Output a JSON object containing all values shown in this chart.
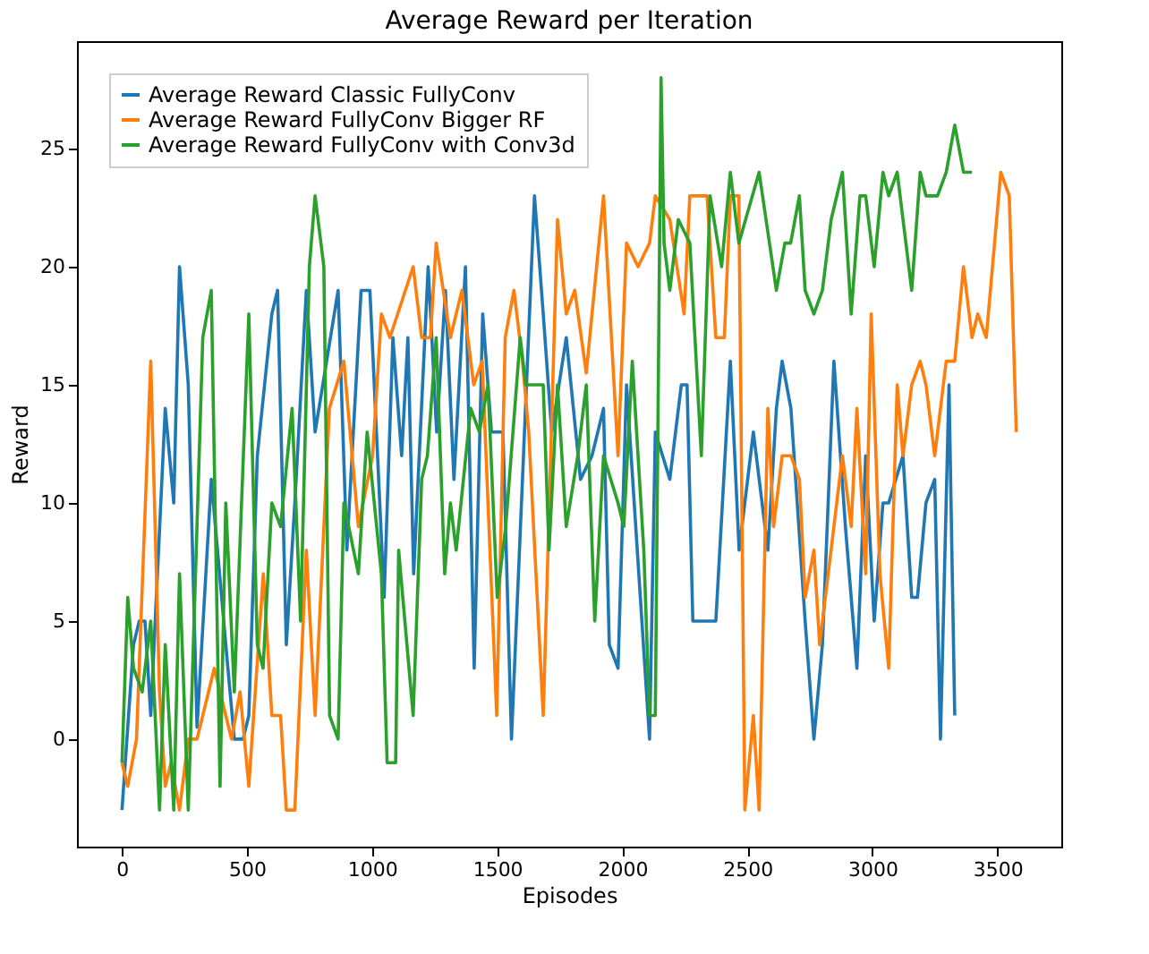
{
  "chart_data": {
    "type": "line",
    "title": "Average Reward per Iteration",
    "xlabel": "Episodes",
    "ylabel": "Reward",
    "xlim": [
      -180,
      3755
    ],
    "ylim": [
      -4.55,
      29.55
    ],
    "xticks": [
      0,
      500,
      1000,
      1500,
      2000,
      2500,
      3000,
      3500
    ],
    "yticks": [
      0,
      5,
      10,
      15,
      20,
      25
    ],
    "grid": false,
    "legend": "top left",
    "marker": "none",
    "line_style": "solid",
    "series": [
      {
        "name": "Average Reward Classic FullyConv",
        "color": "#1f77b4",
        "x": [
          0,
          46,
          69,
          92,
          115,
          173,
          207,
          230,
          265,
          300,
          357,
          415,
          449,
          484,
          507,
          541,
          599,
          622,
          657,
          691,
          737,
          772,
          864,
          899,
          956,
          991,
          1048,
          1083,
          1118,
          1143,
          1166,
          1224,
          1258,
          1293,
          1327,
          1373,
          1408,
          1442,
          1477,
          1523,
          1557,
          1649,
          1684,
          1718,
          1776,
          1833,
          1879,
          1925,
          1948,
          1983,
          2017,
          2109,
          2132,
          2190,
          2236,
          2259,
          2282,
          2316,
          2374,
          2432,
          2467,
          2524,
          2582,
          2616,
          2639,
          2674,
          2731,
          2766,
          2800,
          2846,
          2892,
          2938,
          2973,
          3007,
          3042,
          3065,
          3122,
          3157,
          3180,
          3214,
          3249,
          3272,
          3306,
          3329
        ],
        "values": [
          -3,
          4,
          5,
          5,
          1,
          14,
          10,
          20,
          15,
          0.5,
          11,
          4,
          0,
          0,
          1,
          12,
          18,
          19,
          4,
          10,
          19,
          13,
          19,
          8,
          19,
          19,
          6,
          17,
          12,
          17,
          7,
          20,
          13,
          19,
          11,
          20,
          3,
          18,
          13,
          13,
          0,
          23,
          18,
          13,
          17,
          11,
          12,
          14,
          4,
          3,
          15,
          0,
          13,
          11,
          15,
          15,
          5,
          5,
          5,
          16,
          8,
          13,
          8,
          14,
          16,
          14,
          5,
          0,
          4,
          16,
          9,
          3,
          12,
          5,
          10,
          10,
          12,
          6,
          6,
          10,
          11,
          0,
          15,
          1
        ]
      },
      {
        "name": "Average Reward FullyConv Bigger RF",
        "color": "#ff7f0e",
        "x": [
          0,
          23,
          58,
          115,
          150,
          173,
          196,
          230,
          265,
          300,
          369,
          438,
          472,
          507,
          565,
          599,
          634,
          657,
          691,
          737,
          772,
          829,
          887,
          945,
          1002,
          1037,
          1071,
          1164,
          1198,
          1233,
          1256,
          1313,
          1359,
          1406,
          1440,
          1498,
          1532,
          1567,
          1601,
          1626,
          1684,
          1741,
          1776,
          1810,
          1856,
          1925,
          1983,
          2017,
          2063,
          2109,
          2132,
          2190,
          2247,
          2270,
          2339,
          2374,
          2408,
          2432,
          2466,
          2490,
          2524,
          2547,
          2582,
          2605,
          2639,
          2674,
          2708,
          2731,
          2766,
          2789,
          2846,
          2880,
          2915,
          2938,
          2973,
          2995,
          3030,
          3065,
          3099,
          3122,
          3157,
          3191,
          3214,
          3249,
          3295,
          3329,
          3364,
          3398,
          3421,
          3455,
          3513,
          3547,
          3575
        ],
        "values": [
          -1,
          -2,
          0,
          16,
          2,
          -2,
          -1,
          -3,
          0,
          0,
          3,
          0,
          2,
          -2,
          7,
          1,
          1,
          -3,
          -3,
          8,
          1,
          14,
          16,
          9,
          12,
          18,
          17,
          20,
          17,
          17,
          21,
          17,
          19,
          15,
          16,
          1,
          17,
          19,
          16,
          13,
          1,
          22,
          18,
          19,
          15.5,
          23,
          12,
          21,
          20,
          21,
          23,
          22,
          18,
          23,
          23,
          17,
          17,
          23,
          23,
          -3,
          1,
          -3,
          14,
          9,
          12,
          12,
          11,
          6,
          8,
          4,
          9,
          12,
          9,
          14,
          7,
          18,
          7,
          3,
          15,
          12,
          15,
          16,
          15,
          12,
          16,
          16,
          20,
          17,
          18,
          17,
          24,
          23,
          13
        ]
      },
      {
        "name": "Average Reward FullyConv with Conv3d",
        "color": "#2ca02c",
        "x": [
          0,
          23,
          46,
          81,
          115,
          150,
          173,
          207,
          230,
          265,
          323,
          357,
          392,
          415,
          449,
          507,
          541,
          564,
          599,
          634,
          680,
          714,
          749,
          772,
          807,
          830,
          864,
          887,
          945,
          980,
          1037,
          1060,
          1094,
          1106,
          1164,
          1198,
          1221,
          1256,
          1290,
          1313,
          1336,
          1394,
          1429,
          1463,
          1500,
          1534,
          1592,
          1614,
          1684,
          1707,
          1741,
          1776,
          1822,
          1856,
          1890,
          1925,
          1983,
          2006,
          2040,
          2086,
          2109,
          2132,
          2155,
          2167,
          2190,
          2224,
          2270,
          2316,
          2351,
          2397,
          2432,
          2466,
          2547,
          2616,
          2650,
          2673,
          2708,
          2731,
          2766,
          2800,
          2835,
          2880,
          2915,
          2950,
          2973,
          3007,
          3042,
          3065,
          3099,
          3157,
          3191,
          3214,
          3260,
          3295,
          3329,
          3364,
          3398
        ],
        "values": [
          -1,
          6,
          3,
          2,
          5,
          -3,
          4,
          -3,
          7,
          -3,
          17,
          19,
          -2,
          10,
          2,
          18,
          4,
          3,
          10,
          9,
          14,
          5,
          20,
          23,
          20,
          1,
          0,
          10,
          7,
          13,
          7,
          -1,
          -1,
          8,
          1,
          11,
          12,
          17,
          7,
          10,
          8,
          14,
          13,
          15,
          6,
          9,
          17,
          15,
          15,
          8,
          15,
          9,
          12,
          15,
          5,
          12,
          10,
          9,
          16,
          8,
          1,
          1,
          28,
          21,
          19,
          22,
          21,
          12,
          23,
          20,
          24,
          21,
          24,
          19,
          21,
          21,
          23,
          19,
          18,
          19,
          22,
          24,
          18,
          23,
          23,
          20,
          24,
          23,
          24,
          19,
          24,
          23,
          23,
          24,
          26,
          24,
          24
        ]
      }
    ]
  }
}
